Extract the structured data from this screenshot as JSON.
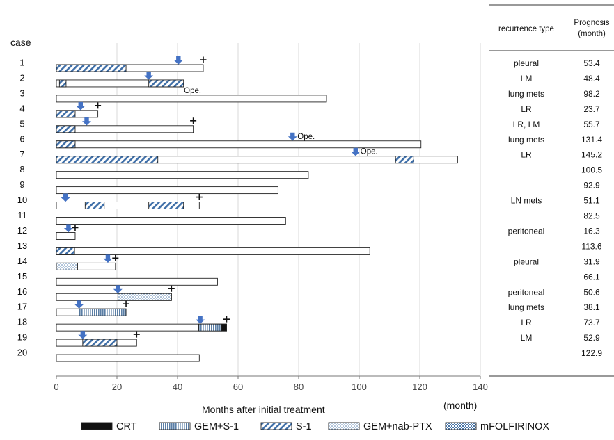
{
  "chart_data": {
    "type": "swimmer",
    "case_header": "case",
    "xlabel": "Months after initial treatment",
    "x_unit_label": "(month)",
    "xlim": [
      0,
      140
    ],
    "xticks": [
      0,
      20,
      40,
      60,
      80,
      100,
      120,
      140
    ],
    "grid": "vertical",
    "legend_position": "bottom",
    "legend": [
      {
        "key": "CRT",
        "label": "CRT",
        "pattern": "solid-black"
      },
      {
        "key": "GEMS1",
        "label": "GEM+S-1",
        "pattern": "vertical-stripes"
      },
      {
        "key": "S1",
        "label": "S-1",
        "pattern": "diagonal-stripes"
      },
      {
        "key": "GEMNAB",
        "label": "GEM+nab-PTX",
        "pattern": "dots"
      },
      {
        "key": "MFOLF",
        "label": "mFOLFIRINOX",
        "pattern": "checker"
      }
    ],
    "table_headers": {
      "recurrence": "recurrence type",
      "prognosis_line1": "Prognosis",
      "prognosis_line2": "(month)"
    },
    "ope_label": "Ope.",
    "cases": [
      {
        "id": "1",
        "end": 48.5,
        "died": true,
        "treatments": [
          {
            "type": "S1",
            "start": 0,
            "end": 23
          }
        ],
        "recurrence": [
          40.3
        ],
        "ope": []
      },
      {
        "id": "2",
        "end": 42,
        "died": false,
        "treatments": [
          {
            "type": "S1",
            "start": 1,
            "end": 3.2
          },
          {
            "type": "S1",
            "start": 30.5,
            "end": 42
          }
        ],
        "recurrence": [
          30.5
        ],
        "ope": []
      },
      {
        "id": "3",
        "end": 89.2,
        "died": false,
        "treatments": [],
        "recurrence": [],
        "ope": [
          40.5
        ]
      },
      {
        "id": "4",
        "end": 13.7,
        "died": true,
        "treatments": [
          {
            "type": "S1",
            "start": 0,
            "end": 6.2
          }
        ],
        "recurrence": [
          8
        ],
        "ope": []
      },
      {
        "id": "5",
        "end": 45.2,
        "died": true,
        "treatments": [
          {
            "type": "S1",
            "start": 0,
            "end": 6.2
          }
        ],
        "recurrence": [
          10
        ],
        "ope": []
      },
      {
        "id": "6",
        "end": 120.4,
        "died": false,
        "treatments": [
          {
            "type": "S1",
            "start": 0,
            "end": 6.2
          }
        ],
        "recurrence": [
          78
        ],
        "ope": [
          78
        ]
      },
      {
        "id": "7",
        "end": 132.5,
        "died": false,
        "treatments": [
          {
            "type": "S1",
            "start": 0,
            "end": 33.5
          },
          {
            "type": "S1",
            "start": 112,
            "end": 118
          }
        ],
        "recurrence": [
          98.8
        ],
        "ope": [
          98.8
        ]
      },
      {
        "id": "8",
        "end": 83.2,
        "died": false,
        "treatments": [],
        "recurrence": [],
        "ope": []
      },
      {
        "id": "9",
        "end": 73.2,
        "died": false,
        "treatments": [],
        "recurrence": [],
        "ope": []
      },
      {
        "id": "10",
        "end": 47.2,
        "died": true,
        "treatments": [
          {
            "type": "S1",
            "start": 9.5,
            "end": 15.8
          },
          {
            "type": "S1",
            "start": 30.5,
            "end": 42
          }
        ],
        "recurrence": [
          3
        ],
        "ope": []
      },
      {
        "id": "11",
        "end": 75.7,
        "died": false,
        "treatments": [],
        "recurrence": [],
        "ope": []
      },
      {
        "id": "12",
        "end": 6.2,
        "died": true,
        "treatments": [],
        "recurrence": [
          4
        ],
        "ope": []
      },
      {
        "id": "13",
        "end": 103.5,
        "died": false,
        "treatments": [
          {
            "type": "S1",
            "start": 0,
            "end": 6
          }
        ],
        "recurrence": [],
        "ope": []
      },
      {
        "id": "14",
        "end": 19.5,
        "died": true,
        "treatments": [
          {
            "type": "GEMNAB",
            "start": 0,
            "end": 7
          }
        ],
        "recurrence": [
          17
        ],
        "ope": []
      },
      {
        "id": "15",
        "end": 53.2,
        "died": false,
        "treatments": [],
        "recurrence": [],
        "ope": []
      },
      {
        "id": "16",
        "end": 38,
        "died": true,
        "treatments": [
          {
            "type": "GEMNAB",
            "start": 20.3,
            "end": 38
          }
        ],
        "recurrence": [
          20.3
        ],
        "ope": []
      },
      {
        "id": "17",
        "end": 23,
        "died": true,
        "treatments": [
          {
            "type": "GEMS1",
            "start": 7.5,
            "end": 23
          }
        ],
        "recurrence": [
          7.5
        ],
        "ope": []
      },
      {
        "id": "18",
        "end": 56.2,
        "died": true,
        "treatments": [
          {
            "type": "GEMS1",
            "start": 47,
            "end": 54.5
          },
          {
            "type": "CRT",
            "start": 54.5,
            "end": 56.2
          }
        ],
        "recurrence": [
          47.5
        ],
        "ope": []
      },
      {
        "id": "19",
        "end": 26.5,
        "died": true,
        "treatments": [
          {
            "type": "S1",
            "start": 8.7,
            "end": 20
          }
        ],
        "recurrence": [
          8.7
        ],
        "ope": []
      },
      {
        "id": "20",
        "end": 47.2,
        "died": false,
        "treatments": [],
        "recurrence": [],
        "ope": []
      }
    ],
    "table_rows": [
      {
        "recurrence": "pleural",
        "prognosis": "53.4"
      },
      {
        "recurrence": "LM",
        "prognosis": "48.4"
      },
      {
        "recurrence": "lung mets",
        "prognosis": "98.2"
      },
      {
        "recurrence": "LR",
        "prognosis": "23.7"
      },
      {
        "recurrence": "LR, LM",
        "prognosis": "55.7"
      },
      {
        "recurrence": "lung mets",
        "prognosis": "131.4"
      },
      {
        "recurrence": "LR",
        "prognosis": "145.2"
      },
      {
        "recurrence": "",
        "prognosis": "100.5"
      },
      {
        "recurrence": "",
        "prognosis": "92.9"
      },
      {
        "recurrence": "LN mets",
        "prognosis": "51.1"
      },
      {
        "recurrence": "",
        "prognosis": "82.5"
      },
      {
        "recurrence": "peritoneal",
        "prognosis": "16.3"
      },
      {
        "recurrence": "",
        "prognosis": "113.6"
      },
      {
        "recurrence": "pleural",
        "prognosis": "31.9"
      },
      {
        "recurrence": "",
        "prognosis": "66.1"
      },
      {
        "recurrence": "peritoneal",
        "prognosis": "50.6"
      },
      {
        "recurrence": "lung mets",
        "prognosis": "38.1"
      },
      {
        "recurrence": "LR",
        "prognosis": "73.7"
      },
      {
        "recurrence": "LM",
        "prognosis": "52.9"
      },
      {
        "recurrence": "",
        "prognosis": "122.9"
      }
    ]
  }
}
